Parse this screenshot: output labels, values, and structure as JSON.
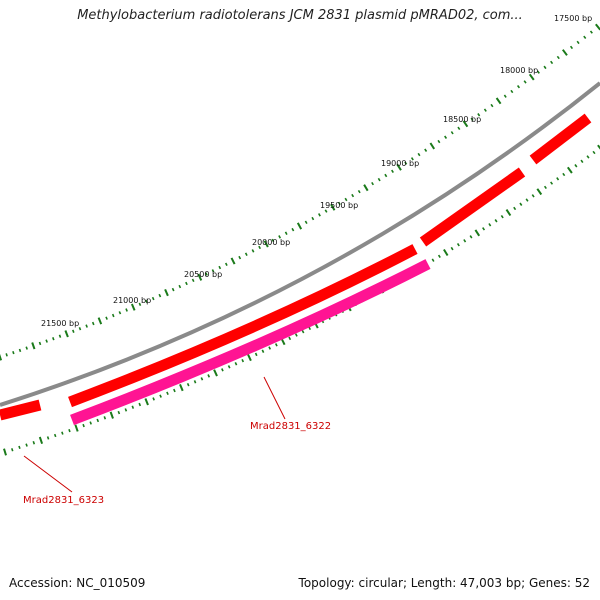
{
  "title": "Methylobacterium radiotolerans JCM 2831 plasmid pMRAD02, com...",
  "accession": "Accession: NC_010509",
  "summary": "Topology: circular; Length: 47,003 bp; Genes: 52",
  "scale_labels": [
    "17500 bp",
    "18000 bp",
    "18500 bp",
    "19000 bp",
    "19500 bp",
    "20000 bp",
    "20500 bp",
    "21000 bp",
    "21500 bp"
  ],
  "gene_labels": [
    "Mrad2831_6322",
    "Mrad2831_6323"
  ],
  "colors": {
    "backbone": "#8a8a8a",
    "forward_gene": "#ff0000",
    "reverse_gene": "#ff1493",
    "tick": "#1a7a1a",
    "label": "#cc0000"
  }
}
